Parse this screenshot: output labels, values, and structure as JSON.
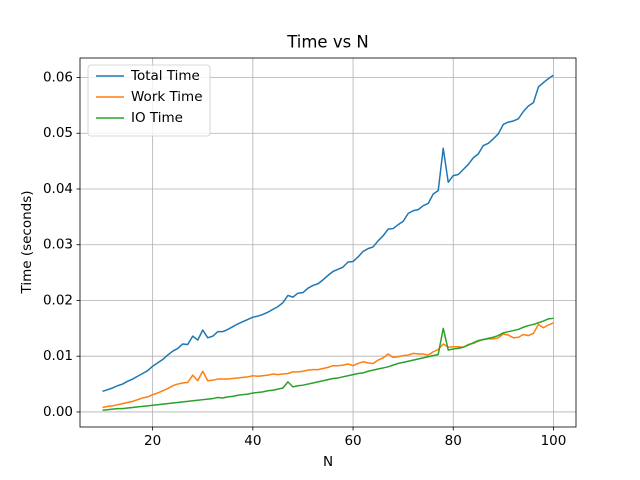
{
  "chart_data": {
    "type": "line",
    "title": "Time vs N",
    "xlabel": "N",
    "ylabel": "Time (seconds)",
    "x": [
      10,
      11,
      12,
      13,
      14,
      15,
      16,
      17,
      18,
      19,
      20,
      21,
      22,
      23,
      24,
      25,
      26,
      27,
      28,
      29,
      30,
      31,
      32,
      33,
      34,
      35,
      36,
      37,
      38,
      39,
      40,
      41,
      42,
      43,
      44,
      45,
      46,
      47,
      48,
      49,
      50,
      51,
      52,
      53,
      54,
      55,
      56,
      57,
      58,
      59,
      60,
      61,
      62,
      63,
      64,
      65,
      66,
      67,
      68,
      69,
      70,
      71,
      72,
      73,
      74,
      75,
      76,
      77,
      78,
      79,
      80,
      81,
      82,
      83,
      84,
      85,
      86,
      87,
      88,
      89,
      90,
      91,
      92,
      93,
      94,
      95,
      96,
      97,
      98,
      99,
      100
    ],
    "series": [
      {
        "name": "Total Time",
        "color": "#1f77b4",
        "values": [
          0.0037,
          0.004,
          0.0043,
          0.0047,
          0.005,
          0.0055,
          0.0059,
          0.0064,
          0.0069,
          0.0074,
          0.0082,
          0.0088,
          0.0094,
          0.0102,
          0.0109,
          0.0114,
          0.0122,
          0.0121,
          0.0136,
          0.0129,
          0.0147,
          0.0133,
          0.0136,
          0.0144,
          0.0144,
          0.0148,
          0.0153,
          0.0158,
          0.0162,
          0.0166,
          0.017,
          0.0172,
          0.0175,
          0.0179,
          0.0184,
          0.0189,
          0.0196,
          0.0209,
          0.0206,
          0.0213,
          0.0214,
          0.0222,
          0.0227,
          0.023,
          0.0237,
          0.0245,
          0.0252,
          0.0256,
          0.026,
          0.0269,
          0.027,
          0.0278,
          0.0288,
          0.0293,
          0.0296,
          0.0307,
          0.0316,
          0.0328,
          0.0329,
          0.0336,
          0.0342,
          0.0356,
          0.0361,
          0.0363,
          0.037,
          0.0374,
          0.0391,
          0.0397,
          0.0473,
          0.0412,
          0.0424,
          0.0426,
          0.0435,
          0.0444,
          0.0456,
          0.0463,
          0.0478,
          0.0482,
          0.049,
          0.0499,
          0.0516,
          0.052,
          0.0522,
          0.0526,
          0.0539,
          0.0549,
          0.0555,
          0.0583,
          0.0591,
          0.0598,
          0.0604
        ]
      },
      {
        "name": "Work Time",
        "color": "#ff7f0e",
        "values": [
          0.0008,
          0.001,
          0.0011,
          0.0013,
          0.0015,
          0.0017,
          0.0019,
          0.0022,
          0.0025,
          0.0027,
          0.0031,
          0.0034,
          0.0038,
          0.0042,
          0.0047,
          0.005,
          0.0052,
          0.0053,
          0.0066,
          0.0056,
          0.0073,
          0.0056,
          0.0057,
          0.0059,
          0.0059,
          0.0059,
          0.006,
          0.0061,
          0.0062,
          0.0063,
          0.0065,
          0.0064,
          0.0065,
          0.0066,
          0.0068,
          0.0067,
          0.0068,
          0.0069,
          0.0072,
          0.0072,
          0.0073,
          0.0075,
          0.0076,
          0.0076,
          0.0078,
          0.008,
          0.0083,
          0.0083,
          0.0084,
          0.0086,
          0.0083,
          0.0087,
          0.009,
          0.0088,
          0.0087,
          0.0093,
          0.0097,
          0.0104,
          0.0098,
          0.0099,
          0.0101,
          0.0102,
          0.0105,
          0.0104,
          0.0104,
          0.0102,
          0.0108,
          0.0112,
          0.0122,
          0.0116,
          0.0117,
          0.0117,
          0.0116,
          0.0121,
          0.0123,
          0.0127,
          0.013,
          0.0131,
          0.0131,
          0.0133,
          0.014,
          0.0138,
          0.0133,
          0.0134,
          0.0139,
          0.0137,
          0.0141,
          0.0157,
          0.0151,
          0.0156,
          0.016
        ]
      },
      {
        "name": "IO Time",
        "color": "#2ca02c",
        "values": [
          0.0003,
          0.0004,
          0.0005,
          0.0006,
          0.0006,
          0.0007,
          0.0008,
          0.0009,
          0.001,
          0.0011,
          0.0012,
          0.0013,
          0.0014,
          0.0015,
          0.0016,
          0.0017,
          0.0018,
          0.0019,
          0.002,
          0.0021,
          0.0022,
          0.0023,
          0.0024,
          0.0026,
          0.0025,
          0.0027,
          0.0028,
          0.003,
          0.0031,
          0.0032,
          0.0034,
          0.0035,
          0.0036,
          0.0038,
          0.0039,
          0.0041,
          0.0043,
          0.0054,
          0.0045,
          0.0047,
          0.0048,
          0.005,
          0.0052,
          0.0054,
          0.0056,
          0.0058,
          0.006,
          0.0061,
          0.0063,
          0.0065,
          0.0067,
          0.0069,
          0.007,
          0.0073,
          0.0075,
          0.0077,
          0.0079,
          0.0081,
          0.0084,
          0.0087,
          0.0089,
          0.0091,
          0.0093,
          0.0095,
          0.0097,
          0.0099,
          0.0101,
          0.0103,
          0.015,
          0.0111,
          0.0113,
          0.0114,
          0.0116,
          0.012,
          0.0124,
          0.0128,
          0.013,
          0.0132,
          0.0134,
          0.0137,
          0.0142,
          0.0144,
          0.0146,
          0.0148,
          0.0152,
          0.0155,
          0.0157,
          0.016,
          0.0163,
          0.0167,
          0.0168
        ]
      }
    ],
    "xlim": [
      5.5,
      104.5
    ],
    "xticks": [
      20,
      40,
      60,
      80,
      100
    ],
    "ylim": [
      -0.0027,
      0.0635
    ],
    "yticks": [
      {
        "value": 0,
        "label": "0.00"
      },
      0.01,
      0.02,
      0.03,
      0.04,
      0.05,
      0.06
    ],
    "grid": true,
    "legend": "upper left"
  }
}
